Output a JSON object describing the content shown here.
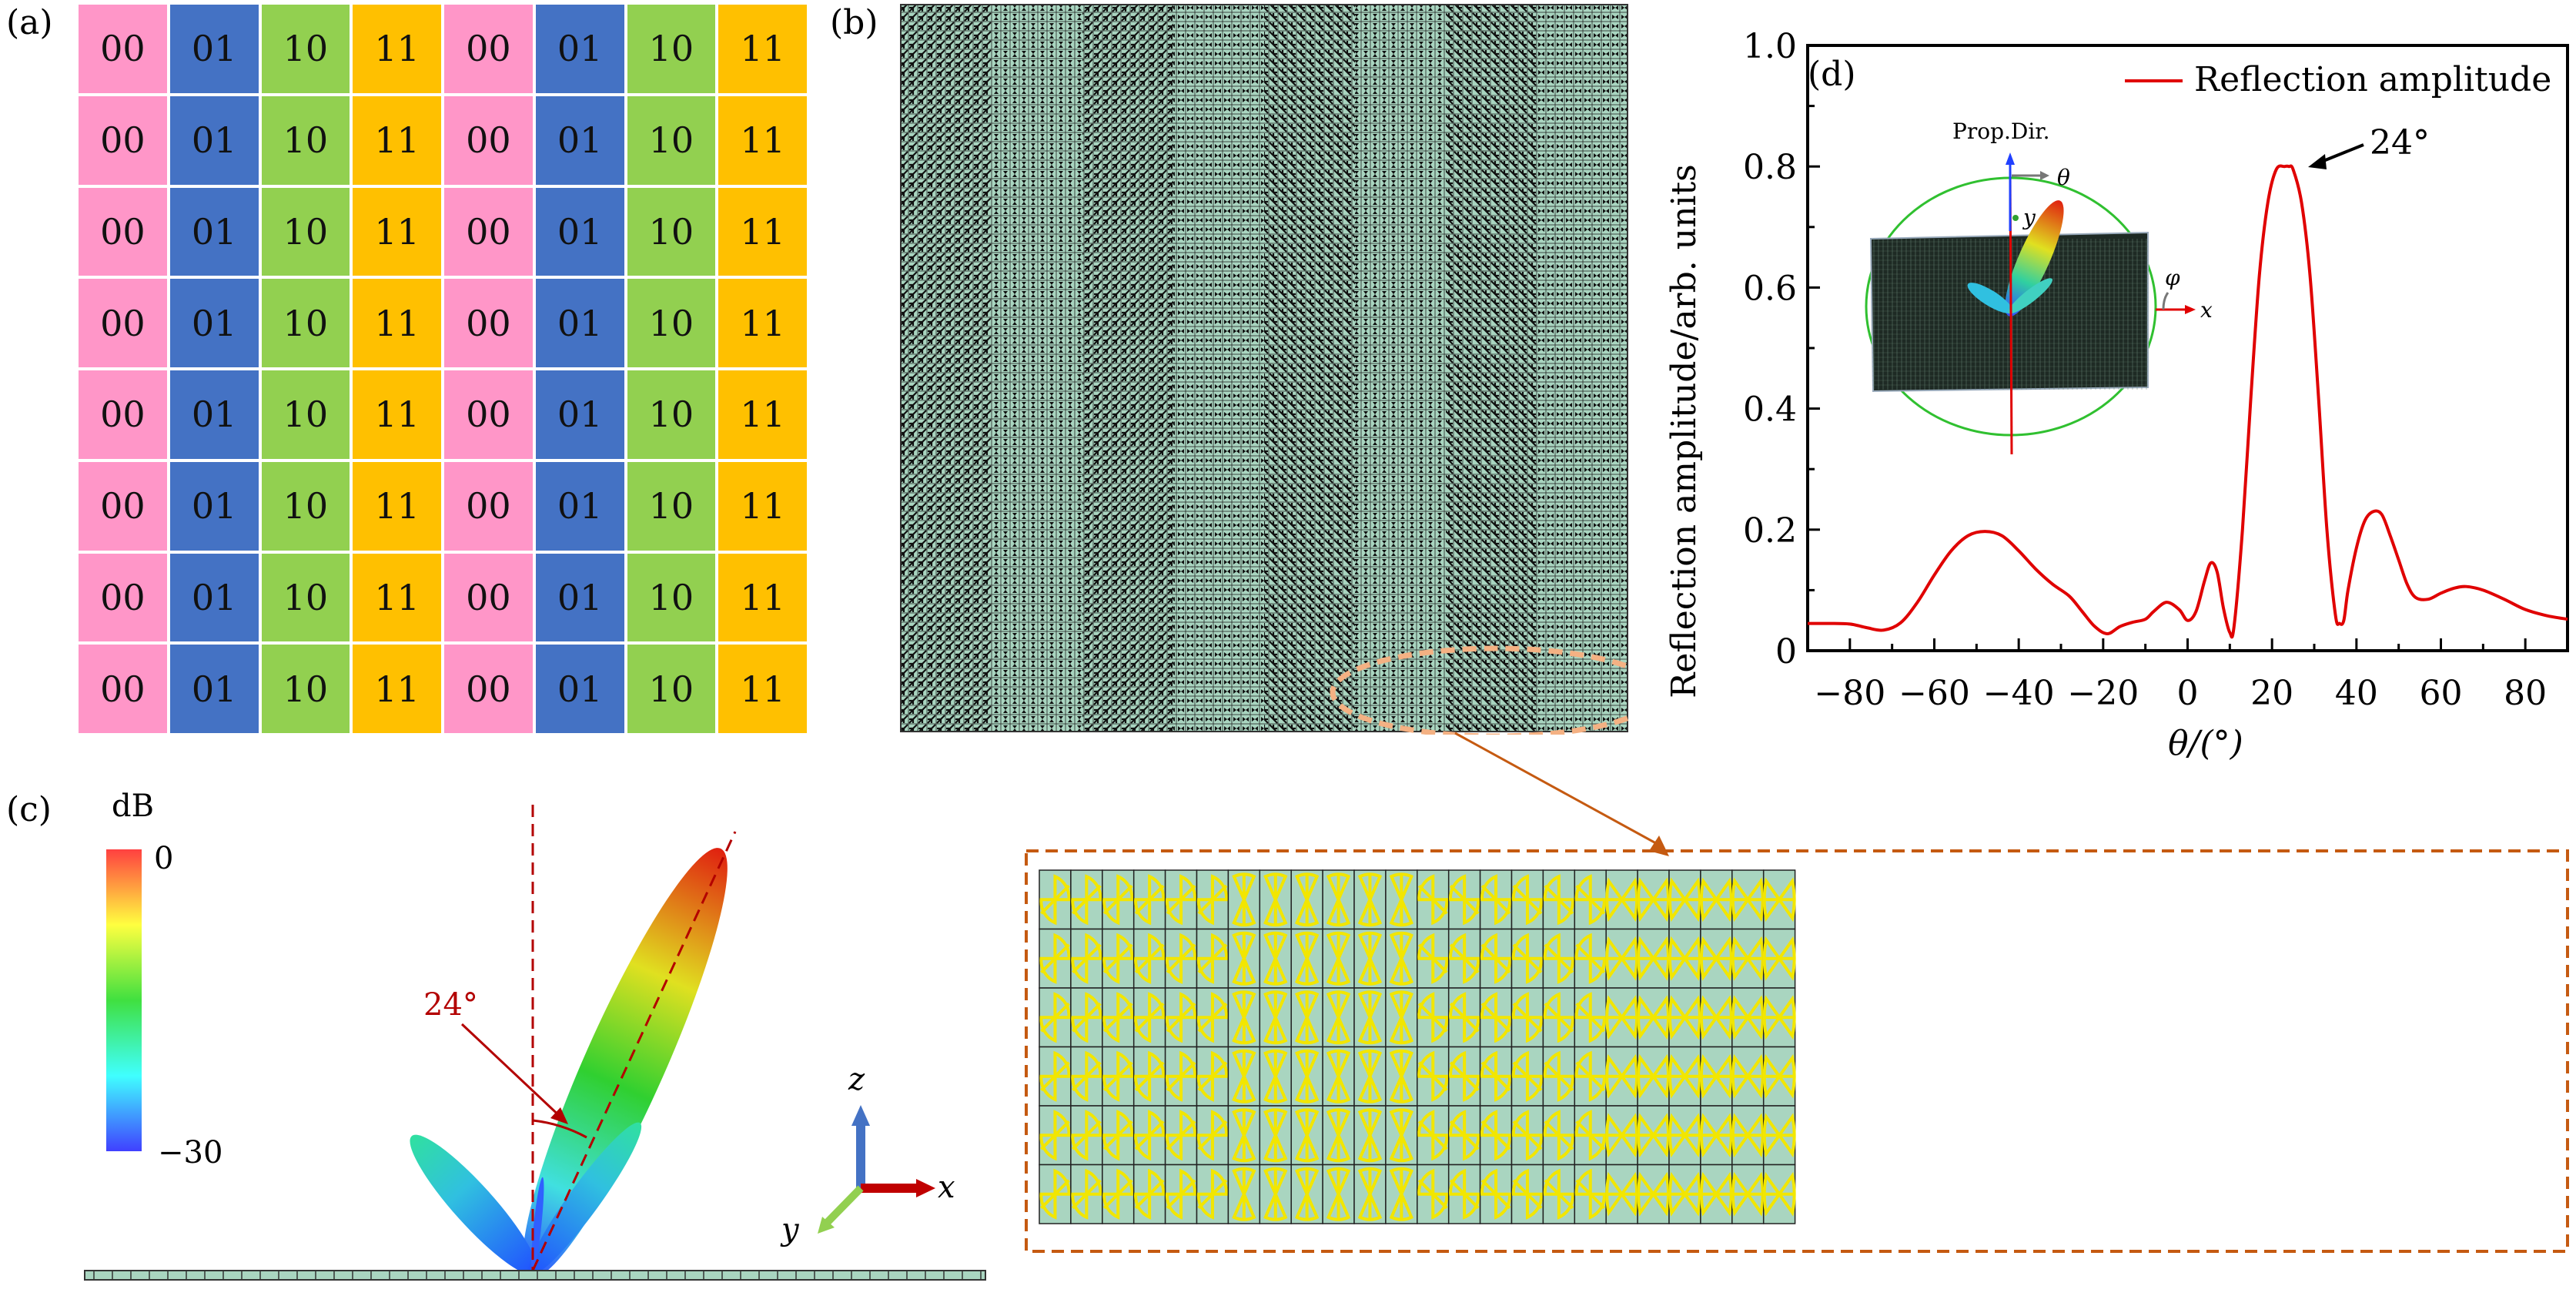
{
  "panels": {
    "a": {
      "label": "(a)",
      "colors": {
        "00": "#ff96c8",
        "01": "#4472c4",
        "10": "#92d050",
        "11": "#ffc000"
      },
      "column_sequence": [
        "00",
        "01",
        "10",
        "11",
        "00",
        "01",
        "10",
        "11"
      ],
      "rows": 8
    },
    "b": {
      "label": "(b)",
      "description": "Coding metasurface layout with dashed ellipse highlighting region magnified below",
      "ellipse_color": "#f4b183",
      "arrow_color": "#c55a11"
    },
    "c": {
      "label": "(c)",
      "colorbar_unit": "dB",
      "colorbar_max": "0",
      "colorbar_min": "−30",
      "angle_label": "24°",
      "axes": {
        "z": "z",
        "x": "x",
        "y": "y"
      },
      "angle_color": "#b30000"
    },
    "zoom_strip": {
      "rows": 6,
      "groups": [
        {
          "element": "pinwheel-a",
          "count": 6
        },
        {
          "element": "bowtie-vertical",
          "count": 6
        },
        {
          "element": "pinwheel-b",
          "count": 6
        },
        {
          "element": "bowtie-horizontal",
          "count": 6
        }
      ],
      "cell_bg": "#a9d5c0",
      "metal_color": "#f2e600",
      "border_color": "#c55a11"
    },
    "d": {
      "label": "(d)",
      "inset": {
        "prop_label": "Prop.Dir.",
        "theta_label": "θ",
        "phi_label": "φ",
        "x_label": "x",
        "y_label": "y"
      },
      "peak_annotation": "24°"
    }
  },
  "chart_data": {
    "type": "line",
    "title": "",
    "xlabel": "θ/(°)",
    "ylabel": "Reflection amplitude/arb. units",
    "xlim": [
      -90,
      90
    ],
    "ylim": [
      0,
      1.0
    ],
    "xticks": [
      -80,
      -60,
      -40,
      -20,
      0,
      20,
      40,
      60,
      80
    ],
    "xtick_labels": [
      "−80",
      "−60",
      "−40",
      "−20",
      "0",
      "20",
      "40",
      "60",
      "80"
    ],
    "yticks": [
      0,
      0.2,
      0.4,
      0.6,
      0.8,
      1.0
    ],
    "ytick_labels": [
      "0",
      "0.2",
      "0.4",
      "0.6",
      "0.8",
      "1.0"
    ],
    "legend": {
      "position": "top-right",
      "entries": [
        "Reflection amplitude"
      ]
    },
    "grid": false,
    "series": [
      {
        "name": "Reflection amplitude",
        "color": "#e00000",
        "x": [
          -90,
          -85,
          -80,
          -76,
          -72,
          -68,
          -64,
          -60,
          -56,
          -52,
          -48,
          -44,
          -40,
          -36,
          -32,
          -28,
          -25,
          -22,
          -19,
          -16,
          -13,
          -10,
          -8,
          -5,
          -2,
          0,
          2,
          4,
          5.5,
          7,
          8.5,
          10,
          11,
          13,
          15,
          17,
          19,
          21,
          23,
          24,
          25,
          27,
          29,
          31,
          33,
          35,
          36,
          37,
          38,
          40,
          42,
          44,
          46,
          48,
          50,
          52,
          54,
          57,
          60,
          63,
          66,
          70,
          75,
          80,
          85,
          90
        ],
        "y": [
          0.045,
          0.045,
          0.044,
          0.038,
          0.034,
          0.046,
          0.08,
          0.125,
          0.165,
          0.19,
          0.197,
          0.19,
          0.165,
          0.135,
          0.11,
          0.09,
          0.065,
          0.04,
          0.028,
          0.04,
          0.047,
          0.052,
          0.065,
          0.08,
          0.068,
          0.05,
          0.065,
          0.115,
          0.145,
          0.13,
          0.07,
          0.03,
          0.04,
          0.2,
          0.42,
          0.62,
          0.74,
          0.795,
          0.8,
          0.8,
          0.795,
          0.74,
          0.62,
          0.42,
          0.2,
          0.06,
          0.045,
          0.05,
          0.1,
          0.17,
          0.215,
          0.23,
          0.225,
          0.19,
          0.15,
          0.11,
          0.088,
          0.085,
          0.095,
          0.103,
          0.106,
          0.1,
          0.085,
          0.068,
          0.058,
          0.052
        ]
      }
    ],
    "annotations": [
      {
        "text": "24°",
        "x": 24,
        "y": 0.8
      }
    ]
  }
}
